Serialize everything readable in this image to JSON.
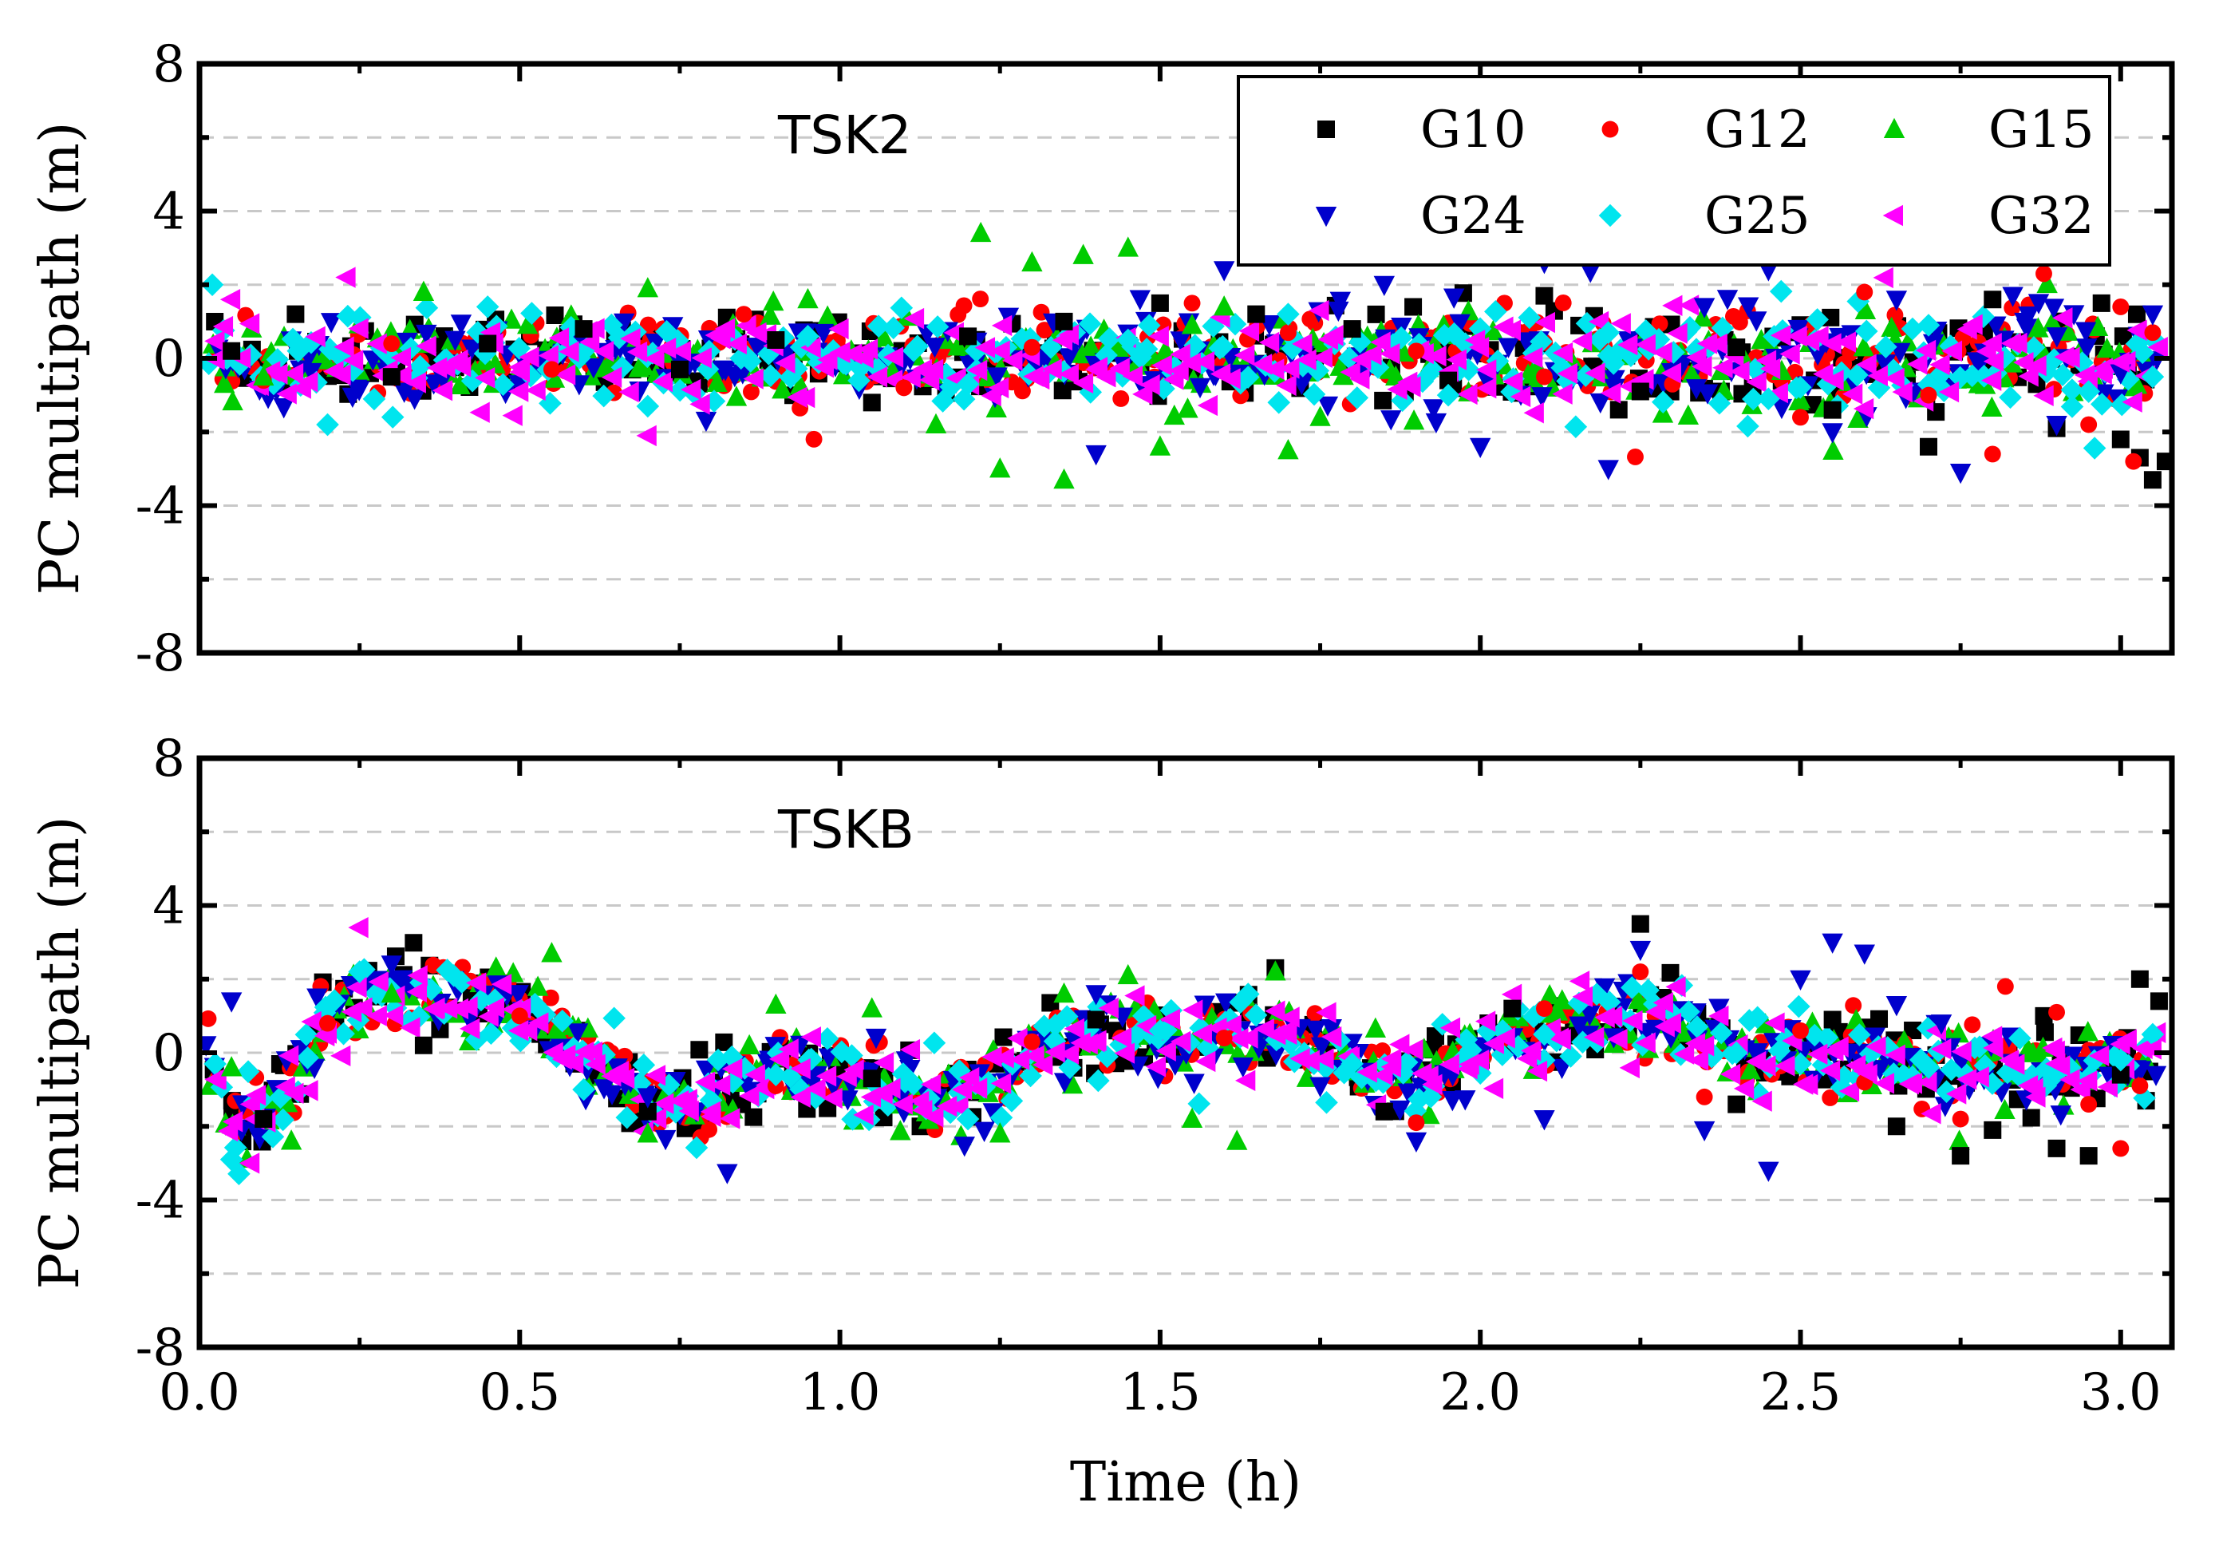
{
  "figure": {
    "xlabel": "Time (h)",
    "ylabel": "PC multipath (m)"
  },
  "chart_data": [
    {
      "type": "scatter",
      "title": "TSK2",
      "xlabel": "",
      "ylabel": "PC multipath (m)",
      "xlim": [
        0.0,
        3.08
      ],
      "ylim": [
        -8,
        8
      ],
      "x_ticks": [
        "0.0",
        "0.5",
        "1.0",
        "1.5",
        "2.0",
        "2.5",
        "3.0"
      ],
      "x_tick_values": [
        0.0,
        0.5,
        1.0,
        1.5,
        2.0,
        2.5,
        3.0
      ],
      "y_ticks": [
        "-8",
        "-4",
        "0",
        "4",
        "8"
      ],
      "y_tick_values": [
        -8,
        -4,
        0,
        4,
        8
      ],
      "grid": "horizontal dashed every 2 m",
      "legend": "top-right",
      "series": [
        {
          "name": "G10",
          "marker": "square",
          "color": "#000000",
          "x": [
            0.05,
            0.15,
            0.3,
            0.45,
            0.6,
            0.75,
            0.9,
            1.05,
            1.2,
            1.35,
            1.5,
            1.65,
            1.8,
            1.95,
            2.1,
            2.25,
            2.4,
            2.55,
            2.7,
            2.8,
            2.9,
            2.97,
            3.0,
            3.03,
            3.05,
            3.07
          ],
          "y": [
            0.2,
            1.2,
            -0.5,
            0.4,
            0.8,
            -0.3,
            0.5,
            -1.2,
            0.6,
            1.0,
            1.5,
            1.2,
            0.8,
            -0.6,
            1.7,
            -0.9,
            0.3,
            -1.4,
            -2.4,
            1.6,
            -1.9,
            1.5,
            -2.2,
            -2.7,
            -3.3,
            -2.8
          ]
        },
        {
          "name": "G12",
          "marker": "circle",
          "color": "#ff0000",
          "x": [
            0.1,
            0.3,
            0.55,
            0.85,
            1.1,
            1.3,
            1.55,
            1.7,
            1.9,
            2.1,
            2.3,
            2.5,
            2.6,
            2.7,
            2.8,
            2.88,
            2.95,
            3.0,
            3.02,
            3.05
          ],
          "y": [
            -0.6,
            0.4,
            -0.3,
            1.2,
            -0.8,
            0.3,
            1.5,
            0.7,
            0.2,
            -0.5,
            -0.7,
            -1.6,
            1.8,
            -1.0,
            -2.6,
            2.3,
            -1.8,
            1.4,
            -2.8,
            0.7
          ]
        },
        {
          "name": "G15",
          "marker": "triangle-up",
          "color": "#00cc00",
          "x": [
            0.1,
            0.35,
            0.7,
            0.95,
            1.15,
            1.22,
            1.25,
            1.3,
            1.35,
            1.38,
            1.45,
            1.5,
            1.55,
            1.6,
            1.7,
            1.75
          ],
          "y": [
            -0.5,
            1.8,
            1.9,
            1.6,
            -1.8,
            3.4,
            -3.0,
            2.6,
            -3.3,
            2.8,
            3.0,
            -2.4,
            0.9,
            1.4,
            -2.5,
            -1.6
          ]
        },
        {
          "name": "G24",
          "marker": "triangle-down",
          "color": "#0000cc",
          "x": [
            1.4,
            1.6,
            1.85,
            2.0,
            2.1,
            2.2,
            2.35,
            2.45,
            2.55,
            2.65,
            2.75,
            2.85,
            2.9,
            3.0,
            3.05
          ],
          "y": [
            -2.6,
            2.4,
            2.0,
            -2.4,
            2.6,
            -3.0,
            1.4,
            2.4,
            -2.0,
            1.6,
            -3.1,
            1.0,
            -1.8,
            -0.4,
            1.2
          ]
        },
        {
          "name": "G25",
          "marker": "diamond",
          "color": "#00e5ee",
          "x": [
            0.02,
            0.2,
            0.45,
            0.7,
            0.95,
            1.2,
            1.45,
            1.7,
            1.95,
            2.2,
            2.45,
            2.7,
            2.95,
            3.05
          ],
          "y": [
            2.0,
            -1.8,
            1.4,
            -1.3,
            0.6,
            -0.7,
            0.5,
            1.2,
            -1.0,
            0.7,
            -1.1,
            0.9,
            -0.9,
            -0.5
          ]
        },
        {
          "name": "G32",
          "marker": "triangle-left",
          "color": "#ff00ff",
          "x": [
            0.05,
            0.23,
            0.5,
            0.7,
            1.0,
            1.25,
            1.5,
            1.75,
            2.0,
            2.3,
            2.55,
            2.8,
            3.0,
            3.06
          ],
          "y": [
            1.6,
            2.2,
            -0.9,
            -2.1,
            0.8,
            -0.8,
            0.6,
            1.3,
            0.3,
            -0.4,
            0.4,
            -0.6,
            -0.1,
            0.3
          ]
        }
      ]
    },
    {
      "type": "scatter",
      "title": "TSKB",
      "xlabel": "Time (h)",
      "ylabel": "PC multipath (m)",
      "xlim": [
        0.0,
        3.08
      ],
      "ylim": [
        -8,
        8
      ],
      "x_ticks": [
        "0.0",
        "0.5",
        "1.0",
        "1.5",
        "2.0",
        "2.5",
        "3.0"
      ],
      "x_tick_values": [
        0.0,
        0.5,
        1.0,
        1.5,
        2.0,
        2.5,
        3.0
      ],
      "y_ticks": [
        "-8",
        "-4",
        "0",
        "4",
        "8"
      ],
      "y_tick_values": [
        -8,
        -4,
        0,
        4,
        8
      ],
      "grid": "horizontal dashed every 2 m",
      "trend_x": [
        0.0,
        0.05,
        0.1,
        0.15,
        0.2,
        0.3,
        0.4,
        0.5,
        0.6,
        0.7,
        0.8,
        0.9,
        1.0,
        1.1,
        1.2,
        1.3,
        1.4,
        1.5,
        1.6,
        1.7,
        1.8,
        1.9,
        2.0,
        2.1,
        2.2,
        2.3,
        2.4,
        2.5,
        2.6,
        2.7,
        2.8,
        2.9,
        3.0,
        3.07
      ],
      "trend_y": [
        0.6,
        -1.8,
        -1.5,
        -0.8,
        1.0,
        1.6,
        1.4,
        1.2,
        0.0,
        -1.4,
        -1.2,
        -0.4,
        -0.6,
        -1.0,
        -1.4,
        0.0,
        0.4,
        0.4,
        0.4,
        0.4,
        -0.2,
        -0.8,
        0.2,
        0.4,
        0.9,
        0.6,
        0.0,
        -0.2,
        -0.1,
        -0.3,
        -0.5,
        -0.4,
        -0.2,
        0.0
      ],
      "series": [
        {
          "name": "G10",
          "marker": "square",
          "color": "#000000",
          "x": [
            0.1,
            0.35,
            0.7,
            1.05,
            1.4,
            1.68,
            1.85,
            2.05,
            2.25,
            2.4,
            2.55,
            2.65,
            2.75,
            2.8,
            2.88,
            2.9,
            2.95,
            3.0,
            3.03,
            3.06
          ],
          "y": [
            -1.8,
            0.2,
            -1.6,
            -0.7,
            0.9,
            2.3,
            -1.6,
            1.2,
            3.5,
            -1.4,
            0.9,
            -2.0,
            -2.8,
            -2.1,
            1.0,
            -2.6,
            -2.8,
            -0.6,
            2.0,
            1.4
          ]
        },
        {
          "name": "G12",
          "marker": "circle",
          "color": "#ff0000",
          "x": [
            0.2,
            0.5,
            0.9,
            1.3,
            1.6,
            1.9,
            2.1,
            2.25,
            2.35,
            2.5,
            2.6,
            2.75,
            2.82,
            2.9,
            2.95,
            3.0,
            3.03
          ],
          "y": [
            0.8,
            1.0,
            -0.9,
            0.3,
            0.4,
            -1.9,
            1.2,
            2.2,
            -1.2,
            0.6,
            -0.8,
            -1.8,
            1.8,
            1.1,
            -1.4,
            -2.6,
            -0.9
          ]
        },
        {
          "name": "G15",
          "marker": "triangle-up",
          "color": "#00cc00",
          "x": [
            0.05,
            0.3,
            0.55,
            0.7,
            0.9,
            1.05,
            1.25,
            1.35,
            1.45,
            1.55,
            1.62,
            1.68
          ],
          "y": [
            -0.4,
            1.6,
            2.7,
            -2.2,
            1.3,
            1.2,
            -2.2,
            1.6,
            2.1,
            -1.8,
            -2.4,
            2.2
          ]
        },
        {
          "name": "G24",
          "marker": "triangle-down",
          "color": "#0000cc",
          "x": [
            0.05,
            0.3,
            0.7,
            1.1,
            1.4,
            1.75,
            1.9,
            2.1,
            2.25,
            2.35,
            2.45,
            2.5,
            2.55,
            2.6,
            2.65,
            2.72
          ],
          "y": [
            1.4,
            2.4,
            -1.2,
            -1.6,
            1.6,
            -0.9,
            -2.4,
            -1.8,
            2.8,
            -2.1,
            -3.2,
            2.0,
            3.0,
            2.7,
            1.3,
            0.8
          ]
        },
        {
          "name": "G25",
          "marker": "diamond",
          "color": "#00e5ee",
          "x": [
            0.05,
            0.25,
            0.6,
            0.9,
            1.2,
            1.5,
            1.8,
            2.1,
            2.4,
            2.7,
            3.0,
            3.05
          ],
          "y": [
            -2.9,
            2.2,
            -1.0,
            -0.6,
            -1.8,
            0.6,
            -0.3,
            0.5,
            0.0,
            -0.4,
            -0.2,
            0.5
          ]
        },
        {
          "name": "G32",
          "marker": "triangle-left",
          "color": "#ff00ff",
          "x": [
            0.08,
            0.25,
            0.5,
            0.8,
            1.1,
            1.4,
            1.7,
            2.0,
            2.3,
            2.6,
            2.9,
            3.05
          ],
          "y": [
            -3.0,
            3.4,
            0.6,
            -1.6,
            -1.4,
            0.3,
            0.5,
            -0.2,
            0.8,
            -0.5,
            -0.3,
            0.1
          ]
        }
      ]
    }
  ]
}
